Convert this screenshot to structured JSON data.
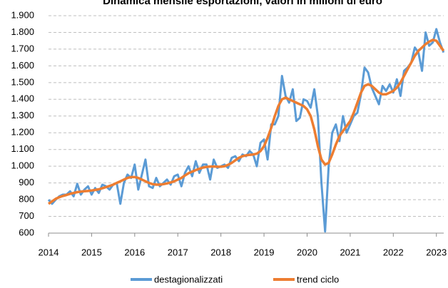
{
  "chart_data": {
    "type": "line",
    "title": "Dinamica mensile esportazioni, valori in milioni di euro",
    "x": [
      2014,
      2014.083,
      2014.167,
      2014.25,
      2014.333,
      2014.417,
      2014.5,
      2014.583,
      2014.667,
      2014.75,
      2014.833,
      2014.917,
      2015,
      2015.083,
      2015.167,
      2015.25,
      2015.333,
      2015.417,
      2015.5,
      2015.583,
      2015.667,
      2015.75,
      2015.833,
      2015.917,
      2016,
      2016.083,
      2016.167,
      2016.25,
      2016.333,
      2016.417,
      2016.5,
      2016.583,
      2016.667,
      2016.75,
      2016.833,
      2016.917,
      2017,
      2017.083,
      2017.167,
      2017.25,
      2017.333,
      2017.417,
      2017.5,
      2017.583,
      2017.667,
      2017.75,
      2017.833,
      2017.917,
      2018,
      2018.083,
      2018.167,
      2018.25,
      2018.333,
      2018.417,
      2018.5,
      2018.583,
      2018.667,
      2018.75,
      2018.833,
      2018.917,
      2019,
      2019.083,
      2019.167,
      2019.25,
      2019.333,
      2019.417,
      2019.5,
      2019.583,
      2019.667,
      2019.75,
      2019.833,
      2019.917,
      2020,
      2020.083,
      2020.167,
      2020.25,
      2020.333,
      2020.417,
      2020.5,
      2020.583,
      2020.667,
      2020.75,
      2020.833,
      2020.917,
      2021,
      2021.083,
      2021.167,
      2021.25,
      2021.333,
      2021.417,
      2021.5,
      2021.583,
      2021.667,
      2021.75,
      2021.833,
      2021.917,
      2022,
      2022.083,
      2022.167,
      2022.25,
      2022.333,
      2022.417,
      2022.5,
      2022.583,
      2022.667,
      2022.75,
      2022.833,
      2022.917,
      2023,
      2023.083,
      2023.167
    ],
    "series": [
      {
        "name": "destagionalizzati",
        "color": "#5b9bd5",
        "values": [
          800,
          775,
          800,
          820,
          830,
          830,
          850,
          820,
          895,
          830,
          860,
          880,
          830,
          870,
          840,
          890,
          880,
          860,
          890,
          900,
          775,
          900,
          950,
          930,
          1010,
          860,
          950,
          1040,
          880,
          870,
          930,
          880,
          900,
          920,
          890,
          940,
          950,
          880,
          960,
          1000,
          940,
          1030,
          960,
          1010,
          1010,
          920,
          1040,
          990,
          1000,
          1010,
          990,
          1050,
          1060,
          1030,
          1070,
          1060,
          1090,
          1070,
          1000,
          1140,
          1160,
          1040,
          1250,
          1250,
          1300,
          1540,
          1420,
          1380,
          1460,
          1270,
          1290,
          1400,
          1390,
          1350,
          1460,
          1300,
          900,
          610,
          1000,
          1200,
          1250,
          1150,
          1300,
          1200,
          1250,
          1300,
          1320,
          1430,
          1590,
          1560,
          1470,
          1420,
          1370,
          1480,
          1450,
          1490,
          1440,
          1520,
          1420,
          1570,
          1590,
          1620,
          1710,
          1680,
          1570,
          1800,
          1720,
          1740,
          1820,
          1740,
          1680
        ]
      },
      {
        "name": "trend ciclo",
        "color": "#ed7d31",
        "values": [
          775,
          790,
          805,
          815,
          822,
          828,
          835,
          840,
          845,
          848,
          850,
          852,
          855,
          858,
          862,
          868,
          875,
          882,
          890,
          900,
          910,
          920,
          930,
          935,
          935,
          930,
          920,
          910,
          900,
          893,
          890,
          890,
          893,
          897,
          903,
          910,
          920,
          930,
          945,
          958,
          968,
          977,
          985,
          992,
          996,
          998,
          998,
          997,
          997,
          1000,
          1008,
          1020,
          1035,
          1050,
          1060,
          1065,
          1068,
          1070,
          1075,
          1090,
          1120,
          1170,
          1230,
          1300,
          1360,
          1400,
          1410,
          1400,
          1390,
          1380,
          1370,
          1360,
          1340,
          1300,
          1220,
          1120,
          1040,
          1010,
          1020,
          1070,
          1130,
          1180,
          1210,
          1240,
          1270,
          1320,
          1380,
          1440,
          1480,
          1490,
          1480,
          1460,
          1440,
          1430,
          1430,
          1440,
          1450,
          1470,
          1500,
          1540,
          1580,
          1620,
          1660,
          1690,
          1710,
          1730,
          1745,
          1755,
          1750,
          1720,
          1690
        ]
      }
    ],
    "xlim": [
      2014,
      2023.17
    ],
    "xticks": [
      2014,
      2015,
      2016,
      2017,
      2018,
      2019,
      2020,
      2021,
      2022,
      2023
    ],
    "ylim": [
      600,
      1900
    ],
    "yticks": [
      600,
      700,
      800,
      900,
      {
        "value": 1000,
        "label": "1.000"
      },
      {
        "value": 1100,
        "label": "1.100"
      },
      {
        "value": 1200,
        "label": "1.200"
      },
      {
        "value": 1300,
        "label": "1.300"
      },
      {
        "value": 1400,
        "label": "1.400"
      },
      {
        "value": 1500,
        "label": "1.500"
      },
      {
        "value": 1600,
        "label": "1.600"
      },
      {
        "value": 1700,
        "label": "1.700"
      },
      {
        "value": 1800,
        "label": "1.800"
      },
      {
        "value": 1900,
        "label": "1.900"
      }
    ],
    "grid": true,
    "legend": "bottom"
  }
}
